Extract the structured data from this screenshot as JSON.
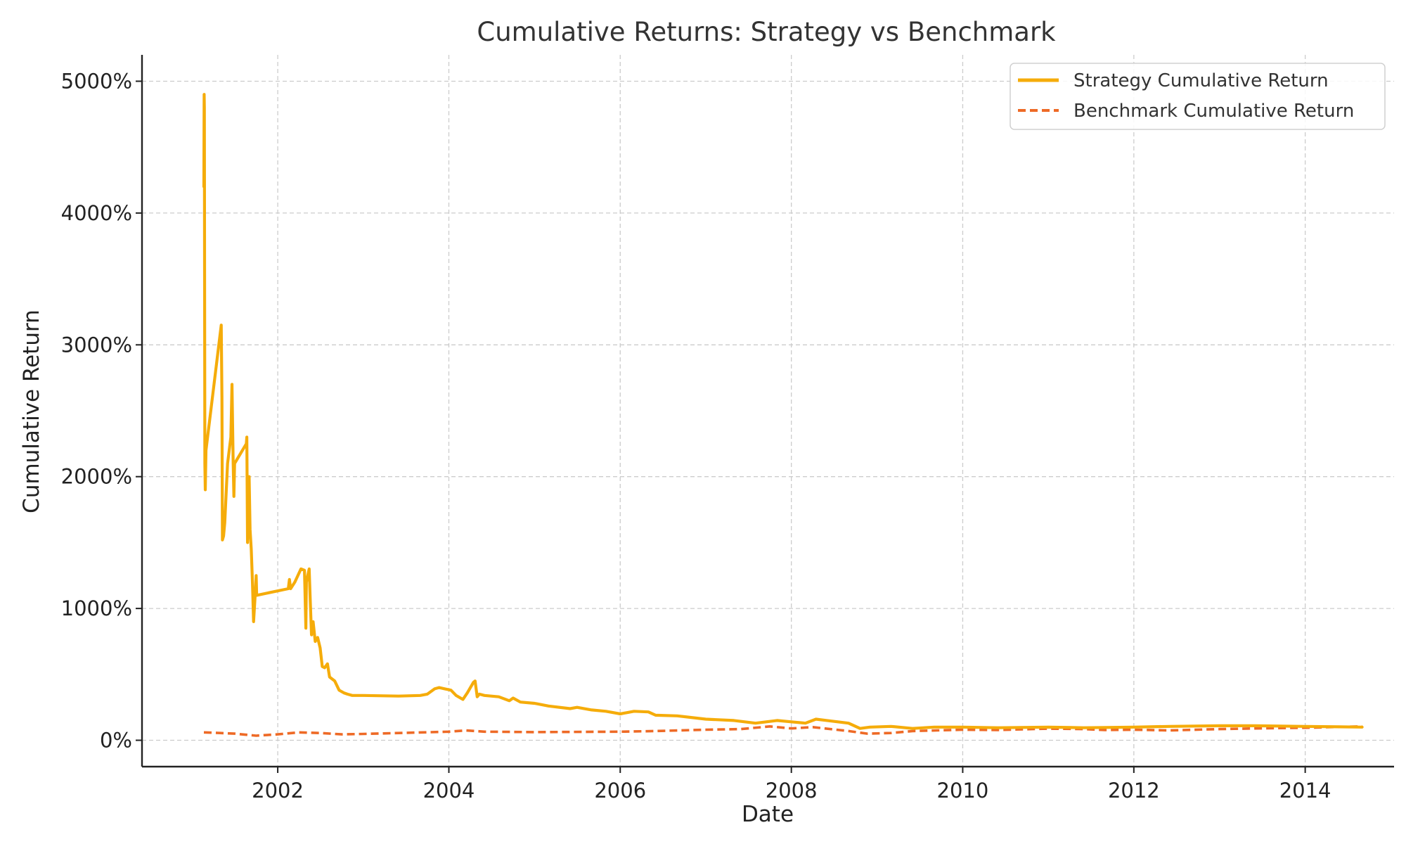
{
  "chart_data": {
    "type": "line",
    "title": "Cumulative Returns: Strategy vs Benchmark",
    "xlabel": "Date",
    "ylabel": "Cumulative Return",
    "xlim": [
      "2000-06-01",
      "2015-01-15"
    ],
    "ylim": [
      -200,
      5200
    ],
    "x_ticks": [
      "2002",
      "2004",
      "2006",
      "2008",
      "2010",
      "2012",
      "2014"
    ],
    "y_ticks": [
      0,
      1000,
      2000,
      3000,
      4000,
      5000
    ],
    "y_tick_labels": [
      "0%",
      "1000%",
      "2000%",
      "3000%",
      "4000%",
      "5000%"
    ],
    "grid": true,
    "legend_position": "top-right",
    "series": [
      {
        "name": "Strategy Cumulative Return",
        "color": "#f5ac0a",
        "style": "solid",
        "points": [
          [
            "2001-02-20",
            4200
          ],
          [
            "2001-02-21",
            4900
          ],
          [
            "2001-02-22",
            4800
          ],
          [
            "2001-02-24",
            2100
          ],
          [
            "2001-02-26",
            1900
          ],
          [
            "2001-03-01",
            2200
          ],
          [
            "2001-05-05",
            3150
          ],
          [
            "2001-05-08",
            2600
          ],
          [
            "2001-05-10",
            1520
          ],
          [
            "2001-05-15",
            1550
          ],
          [
            "2001-05-20",
            1650
          ],
          [
            "2001-06-01",
            2100
          ],
          [
            "2001-06-15",
            2300
          ],
          [
            "2001-06-20",
            2700
          ],
          [
            "2001-06-25",
            2100
          ],
          [
            "2001-06-28",
            1850
          ],
          [
            "2001-07-01",
            2100
          ],
          [
            "2001-08-20",
            2250
          ],
          [
            "2001-08-22",
            2300
          ],
          [
            "2001-08-25",
            1500
          ],
          [
            "2001-09-01",
            2000
          ],
          [
            "2001-09-05",
            1600
          ],
          [
            "2001-09-10",
            1450
          ],
          [
            "2001-09-15",
            1200
          ],
          [
            "2001-09-20",
            900
          ],
          [
            "2001-09-25",
            1050
          ],
          [
            "2001-10-01",
            1250
          ],
          [
            "2001-10-03",
            1100
          ],
          [
            "2002-02-15",
            1150
          ],
          [
            "2002-02-20",
            1220
          ],
          [
            "2002-02-25",
            1150
          ],
          [
            "2002-03-15",
            1200
          ],
          [
            "2002-04-10",
            1300
          ],
          [
            "2002-04-25",
            1290
          ],
          [
            "2002-05-01",
            850
          ],
          [
            "2002-05-03",
            1200
          ],
          [
            "2002-05-15",
            1300
          ],
          [
            "2002-05-20",
            1050
          ],
          [
            "2002-05-25",
            800
          ],
          [
            "2002-06-01",
            900
          ],
          [
            "2002-06-10",
            750
          ],
          [
            "2002-06-20",
            780
          ],
          [
            "2002-07-01",
            700
          ],
          [
            "2002-07-10",
            560
          ],
          [
            "2002-07-20",
            550
          ],
          [
            "2002-08-01",
            580
          ],
          [
            "2002-08-10",
            480
          ],
          [
            "2002-09-01",
            450
          ],
          [
            "2002-09-20",
            380
          ],
          [
            "2002-10-10",
            360
          ],
          [
            "2002-10-25",
            350
          ],
          [
            "2002-11-15",
            340
          ],
          [
            "2003-01-01",
            340
          ],
          [
            "2003-06-01",
            335
          ],
          [
            "2003-09-01",
            340
          ],
          [
            "2003-10-01",
            350
          ],
          [
            "2003-11-01",
            390
          ],
          [
            "2003-11-20",
            400
          ],
          [
            "2003-12-15",
            390
          ],
          [
            "2004-01-10",
            380
          ],
          [
            "2004-02-01",
            340
          ],
          [
            "2004-03-01",
            310
          ],
          [
            "2004-03-20",
            360
          ],
          [
            "2004-04-15",
            440
          ],
          [
            "2004-04-22",
            450
          ],
          [
            "2004-05-01",
            330
          ],
          [
            "2004-05-10",
            350
          ],
          [
            "2004-06-01",
            340
          ],
          [
            "2004-08-01",
            330
          ],
          [
            "2004-09-15",
            300
          ],
          [
            "2004-10-01",
            320
          ],
          [
            "2004-11-01",
            290
          ],
          [
            "2005-01-01",
            280
          ],
          [
            "2005-03-01",
            260
          ],
          [
            "2005-06-01",
            240
          ],
          [
            "2005-07-01",
            250
          ],
          [
            "2005-09-01",
            230
          ],
          [
            "2005-11-01",
            220
          ],
          [
            "2006-01-01",
            200
          ],
          [
            "2006-03-01",
            220
          ],
          [
            "2006-05-01",
            215
          ],
          [
            "2006-06-01",
            190
          ],
          [
            "2006-09-01",
            185
          ],
          [
            "2007-01-01",
            160
          ],
          [
            "2007-05-01",
            150
          ],
          [
            "2007-08-01",
            130
          ],
          [
            "2007-11-01",
            150
          ],
          [
            "2008-01-01",
            140
          ],
          [
            "2008-03-01",
            130
          ],
          [
            "2008-04-15",
            160
          ],
          [
            "2008-06-01",
            150
          ],
          [
            "2008-09-01",
            130
          ],
          [
            "2008-10-20",
            90
          ],
          [
            "2008-12-01",
            100
          ],
          [
            "2009-03-01",
            105
          ],
          [
            "2009-06-01",
            90
          ],
          [
            "2009-09-01",
            100
          ],
          [
            "2010-01-01",
            100
          ],
          [
            "2010-06-01",
            95
          ],
          [
            "2011-01-01",
            100
          ],
          [
            "2011-06-01",
            95
          ],
          [
            "2012-01-01",
            100
          ],
          [
            "2012-06-01",
            105
          ],
          [
            "2013-01-01",
            110
          ],
          [
            "2013-06-01",
            110
          ],
          [
            "2014-01-01",
            105
          ],
          [
            "2014-09-01",
            100
          ]
        ]
      },
      {
        "name": "Benchmark Cumulative Return",
        "color": "#ee6a26",
        "style": "dashed",
        "points": [
          [
            "2001-02-20",
            60
          ],
          [
            "2001-05-01",
            55
          ],
          [
            "2001-07-01",
            50
          ],
          [
            "2001-10-01",
            35
          ],
          [
            "2002-01-01",
            45
          ],
          [
            "2002-04-01",
            60
          ],
          [
            "2002-07-01",
            55
          ],
          [
            "2002-10-01",
            45
          ],
          [
            "2003-01-01",
            48
          ],
          [
            "2003-06-01",
            55
          ],
          [
            "2004-01-01",
            65
          ],
          [
            "2004-03-15",
            75
          ],
          [
            "2004-06-01",
            65
          ],
          [
            "2005-01-01",
            62
          ],
          [
            "2006-01-01",
            65
          ],
          [
            "2006-06-01",
            70
          ],
          [
            "2007-01-01",
            80
          ],
          [
            "2007-06-01",
            85
          ],
          [
            "2007-10-01",
            105
          ],
          [
            "2008-01-01",
            90
          ],
          [
            "2008-04-01",
            100
          ],
          [
            "2008-09-01",
            70
          ],
          [
            "2008-11-20",
            50
          ],
          [
            "2009-03-01",
            55
          ],
          [
            "2009-06-01",
            70
          ],
          [
            "2010-01-01",
            80
          ],
          [
            "2010-06-01",
            78
          ],
          [
            "2011-01-01",
            88
          ],
          [
            "2011-06-01",
            85
          ],
          [
            "2011-09-01",
            78
          ],
          [
            "2012-01-01",
            80
          ],
          [
            "2012-06-01",
            75
          ],
          [
            "2013-01-01",
            85
          ],
          [
            "2013-06-01",
            90
          ],
          [
            "2014-01-01",
            95
          ],
          [
            "2014-09-01",
            105
          ]
        ]
      }
    ]
  }
}
